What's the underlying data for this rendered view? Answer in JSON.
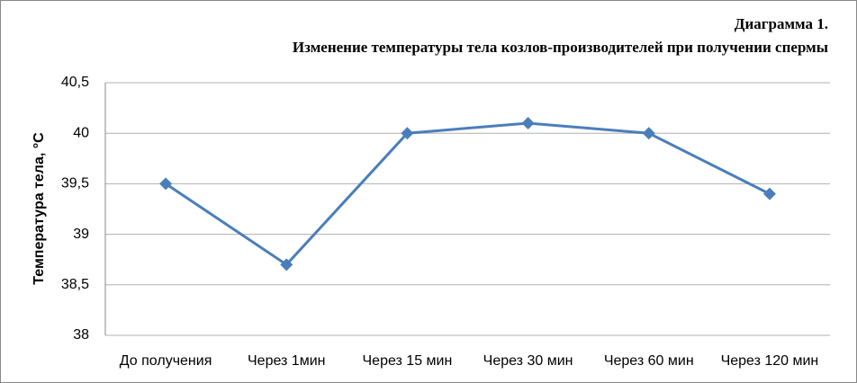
{
  "chart_data": {
    "type": "line",
    "title": "Диаграмма 1.",
    "subtitle": "Изменение температуры тела козлов-производителей при получении спермы",
    "y_label": "Температура тела, °С",
    "categories": [
      "До получения",
      "Через 1мин",
      "Через 15 мин",
      "Через 30 мин",
      "Через 60 мин",
      "Через 120 мин"
    ],
    "values": [
      39.5,
      38.7,
      40,
      40.1,
      40,
      39.4
    ],
    "color": "#4a7ebb",
    "ylim": [
      38,
      40.5
    ],
    "yticks": [
      38,
      {
        "value": 38.5,
        "label": "38,5"
      },
      39,
      {
        "value": 39.5,
        "label": "39,5"
      },
      40,
      {
        "value": 40.5,
        "label": "40,5"
      }
    ],
    "grid": true
  }
}
